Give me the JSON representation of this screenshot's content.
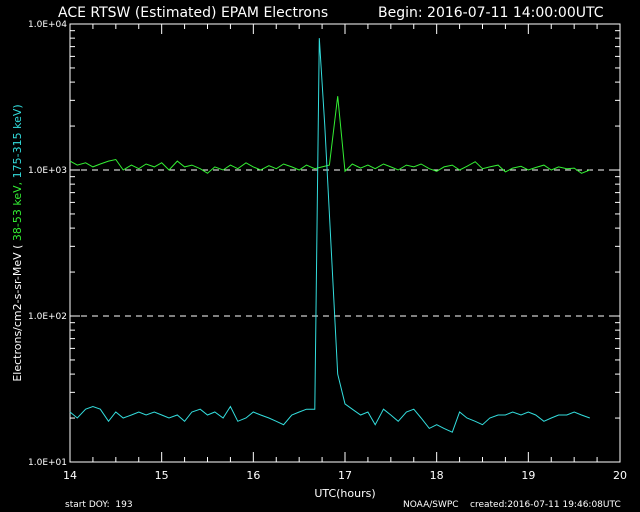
{
  "header": {
    "title": "ACE RTSW (Estimated) EPAM Electrons",
    "begin": "Begin: 2016-07-11 14:00:00UTC"
  },
  "footer": {
    "start_doy": "start DOY:  193",
    "source": "NOAA/SWPC",
    "created": "created:2016-07-11 19:46:08UTC"
  },
  "colors": {
    "background": "#000000",
    "axes": "#ffffff",
    "low_channel": "#33ee33",
    "high_channel": "#33dddd"
  },
  "chart_data": {
    "type": "line",
    "xlabel": "UTC(hours)",
    "ylabel": {
      "base": "Electrons/cm2-s-sr-MeV  (",
      "low": "38-53 keV,",
      "high": "175-315 keV)"
    },
    "xlim": [
      14,
      20
    ],
    "ylim": [
      10,
      10000
    ],
    "yscale": "log",
    "x_ticks": [
      "14",
      "15",
      "16",
      "17",
      "18",
      "19",
      "20"
    ],
    "y_ticks": [
      {
        "value": 10,
        "label": "1.0E+01"
      },
      {
        "value": 100,
        "label": "1.0E+02"
      },
      {
        "value": 1000,
        "label": "1.0E+03"
      },
      {
        "value": 10000,
        "label": "1.0E+04"
      }
    ],
    "reference_lines": [
      100,
      1000
    ],
    "series": [
      {
        "name": "38-53 keV",
        "color": "#33ee33",
        "x": [
          14.0,
          14.08,
          14.17,
          14.25,
          14.33,
          14.42,
          14.5,
          14.58,
          14.67,
          14.75,
          14.83,
          14.92,
          15.0,
          15.08,
          15.17,
          15.25,
          15.33,
          15.42,
          15.5,
          15.58,
          15.67,
          15.75,
          15.83,
          15.92,
          16.0,
          16.08,
          16.17,
          16.25,
          16.33,
          16.42,
          16.5,
          16.58,
          16.67,
          16.75,
          16.83,
          16.92,
          17.0,
          17.08,
          17.17,
          17.25,
          17.33,
          17.42,
          17.5,
          17.58,
          17.67,
          17.75,
          17.83,
          17.92,
          18.0,
          18.08,
          18.17,
          18.25,
          18.33,
          18.42,
          18.5,
          18.58,
          18.67,
          18.75,
          18.83,
          18.92,
          19.0,
          19.08,
          19.17,
          19.25,
          19.33,
          19.42,
          19.5,
          19.58,
          19.67
        ],
        "y": [
          1150,
          1080,
          1120,
          1050,
          1100,
          1150,
          1180,
          1000,
          1080,
          1020,
          1100,
          1050,
          1120,
          1000,
          1150,
          1050,
          1080,
          1020,
          950,
          1050,
          1000,
          1080,
          1020,
          1120,
          1050,
          1000,
          1070,
          1020,
          1100,
          1050,
          1000,
          1080,
          1020,
          1050,
          1080,
          3200,
          980,
          1100,
          1030,
          1080,
          1020,
          1100,
          1050,
          1000,
          1080,
          1050,
          1100,
          1020,
          980,
          1050,
          1080,
          1000,
          1060,
          1140,
          1020,
          1050,
          1080,
          970,
          1030,
          1060,
          1000,
          1040,
          1080,
          1000,
          1050,
          1020,
          1030,
          950,
          1000
        ]
      },
      {
        "name": "175-315 keV",
        "color": "#33dddd",
        "x": [
          14.0,
          14.08,
          14.17,
          14.25,
          14.33,
          14.42,
          14.5,
          14.58,
          14.67,
          14.75,
          14.83,
          14.92,
          15.0,
          15.08,
          15.17,
          15.25,
          15.33,
          15.42,
          15.5,
          15.58,
          15.67,
          15.75,
          15.83,
          15.92,
          16.0,
          16.08,
          16.17,
          16.25,
          16.33,
          16.42,
          16.5,
          16.58,
          16.67,
          16.72,
          16.78,
          16.83,
          16.92,
          17.0,
          17.08,
          17.17,
          17.25,
          17.33,
          17.42,
          17.5,
          17.58,
          17.67,
          17.75,
          17.83,
          17.92,
          18.0,
          18.08,
          18.17,
          18.25,
          18.33,
          18.42,
          18.5,
          18.58,
          18.67,
          18.75,
          18.83,
          18.92,
          19.0,
          19.08,
          19.17,
          19.25,
          19.33,
          19.42,
          19.5,
          19.58,
          19.67
        ],
        "y": [
          22,
          20,
          23,
          24,
          23,
          19,
          22,
          20,
          21,
          22,
          21,
          22,
          21,
          20,
          21,
          19,
          22,
          23,
          21,
          22,
          20,
          24,
          19,
          20,
          22,
          21,
          20,
          19,
          18,
          21,
          22,
          23,
          23,
          8000,
          2000,
          500,
          40,
          25,
          23,
          21,
          22,
          18,
          23,
          21,
          19,
          22,
          23,
          20,
          17,
          18,
          17,
          16,
          22,
          20,
          19,
          18,
          20,
          21,
          21,
          22,
          21,
          22,
          21,
          19,
          20,
          21,
          21,
          22,
          21,
          20
        ]
      }
    ]
  }
}
